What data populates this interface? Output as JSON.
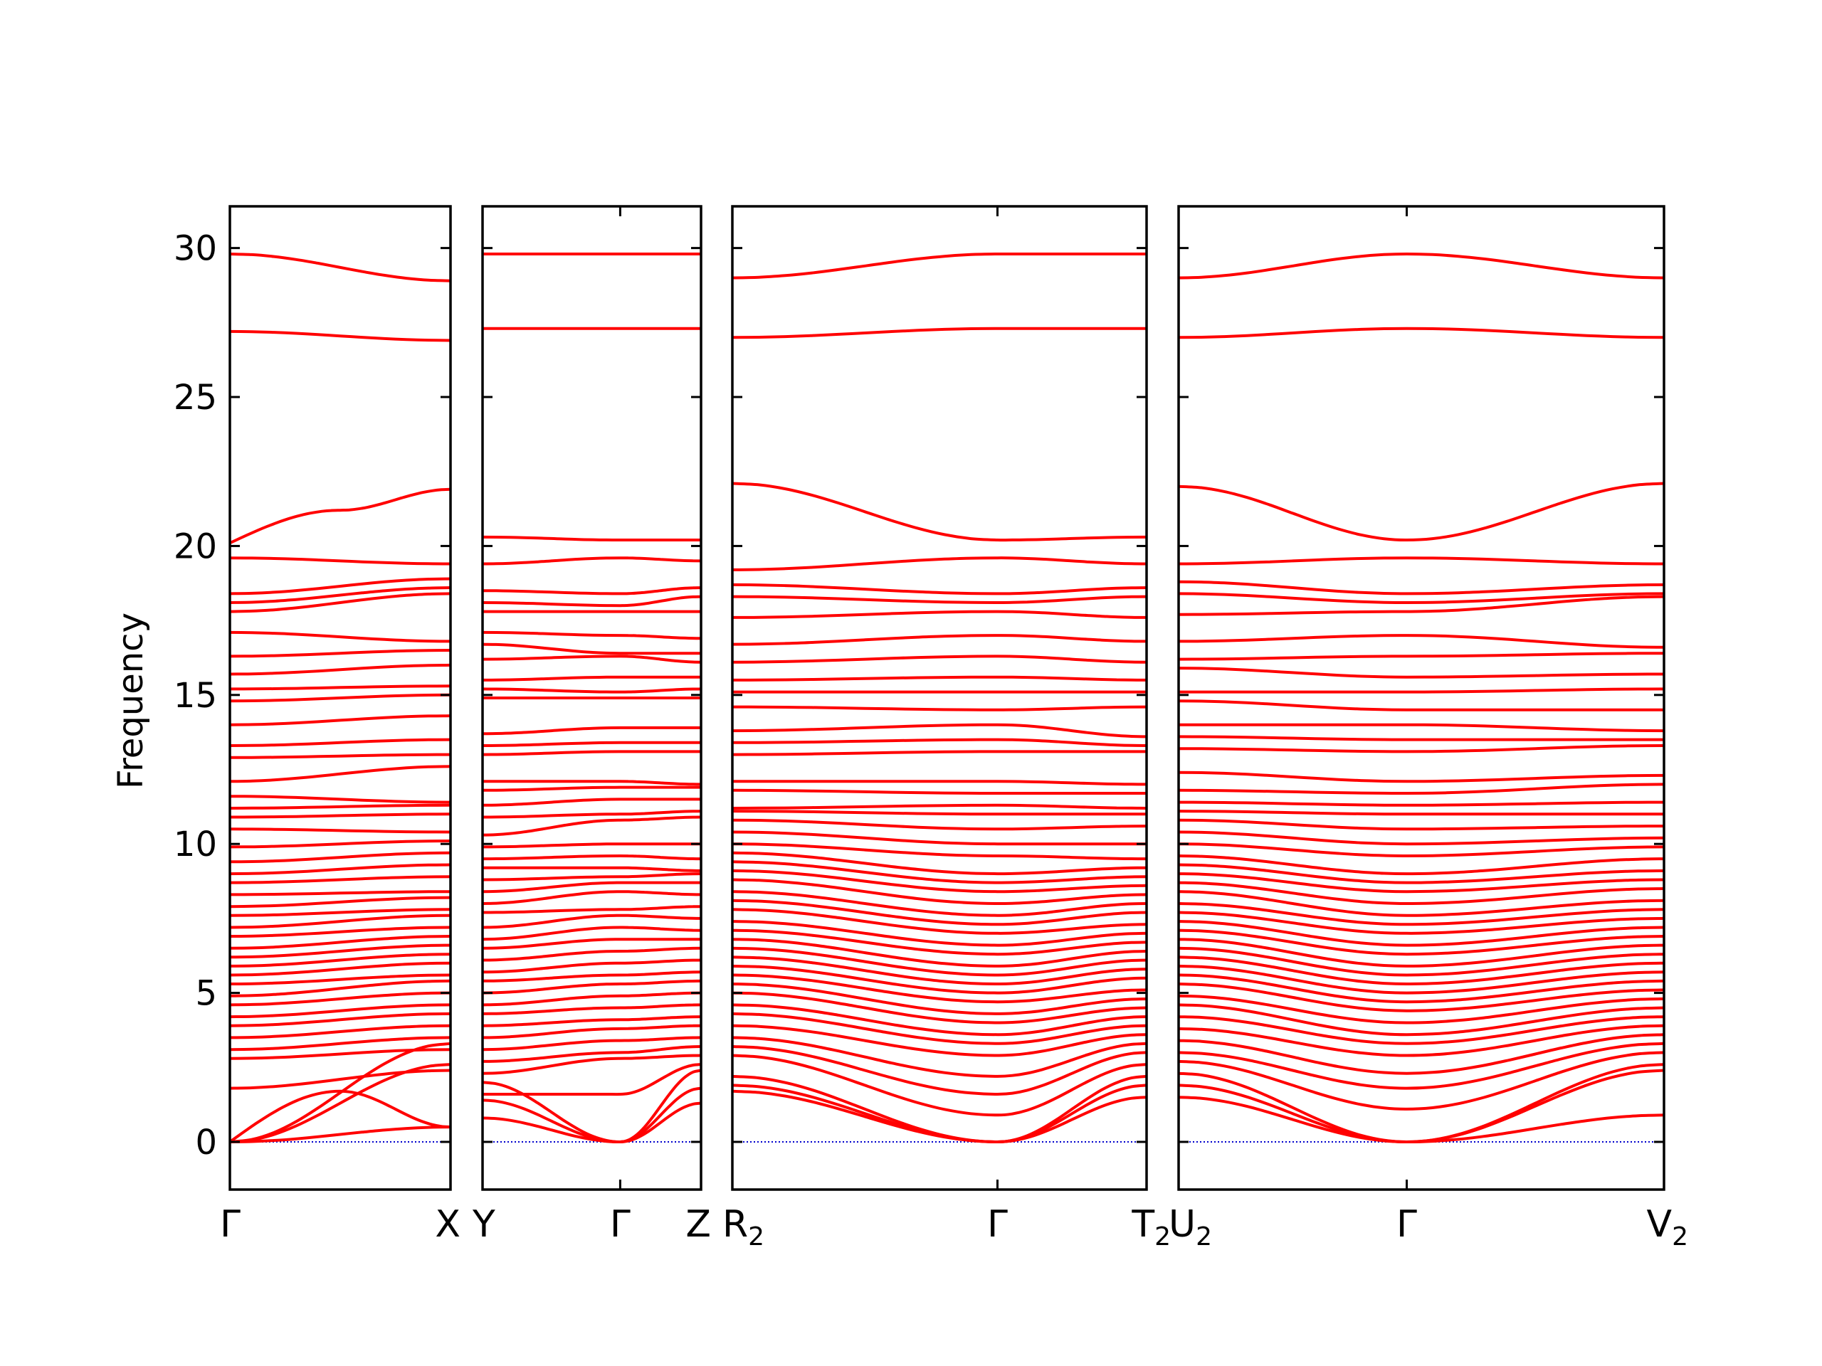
{
  "colors": {
    "band": "#ff0000",
    "zero_line": "#0000cc",
    "axes": "#000000",
    "background": "#ffffff"
  },
  "chart_data": {
    "type": "line",
    "title": "",
    "ylabel": "Frequency",
    "ylim": [
      -1.6,
      31.4
    ],
    "yticks": [
      0,
      5,
      10,
      15,
      20,
      25,
      30
    ],
    "grid": false,
    "legend": "none",
    "zero_line": {
      "y": 0,
      "style": "dotted"
    },
    "panels": [
      {
        "path": "Γ–X",
        "ticks": [
          {
            "label": "Γ",
            "sub": "",
            "pos": 0
          },
          {
            "label": "X",
            "sub": "",
            "pos": 1
          }
        ],
        "bands": [
          [
            0,
            0.5
          ],
          [
            0,
            2.6
          ],
          [
            0,
            3.3
          ],
          [
            1.8,
            2.4
          ],
          [
            2.8,
            3.1
          ],
          [
            3.1,
            3.5
          ],
          [
            3.5,
            3.9
          ],
          [
            3.9,
            4.3
          ],
          [
            4.2,
            4.6
          ],
          [
            4.6,
            5.0
          ],
          [
            4.9,
            5.4
          ],
          [
            5.3,
            5.6
          ],
          [
            5.6,
            6.0
          ],
          [
            5.9,
            6.3
          ],
          [
            6.2,
            6.6
          ],
          [
            6.5,
            6.9
          ],
          [
            6.9,
            7.2
          ],
          [
            7.2,
            7.6
          ],
          [
            7.6,
            7.8
          ],
          [
            7.9,
            8.2
          ],
          [
            8.3,
            8.4
          ],
          [
            8.7,
            8.9
          ],
          [
            9.0,
            9.3
          ],
          [
            9.4,
            9.7
          ],
          [
            9.9,
            10.1
          ],
          [
            10.5,
            10.4
          ],
          [
            10.9,
            11.0
          ],
          [
            11.2,
            11.3
          ],
          [
            11.6,
            11.4
          ],
          [
            12.1,
            12.6
          ],
          [
            12.9,
            13.0
          ],
          [
            13.3,
            13.5
          ],
          [
            14.0,
            14.3
          ],
          [
            14.8,
            15.0
          ],
          [
            15.2,
            15.3
          ],
          [
            15.7,
            16.0
          ],
          [
            16.3,
            16.5
          ],
          [
            17.1,
            16.8
          ],
          [
            17.8,
            18.4
          ],
          [
            18.1,
            18.6
          ],
          [
            18.4,
            18.9
          ],
          [
            19.6,
            19.4
          ],
          [
            29.8,
            28.9
          ],
          [
            27.2,
            26.9
          ]
        ],
        "curved_bands": [
          {
            "start": 0,
            "mid": 1.7,
            "end": 0.5
          },
          {
            "start": 20.1,
            "mid": 21.2,
            "end": 21.9
          }
        ]
      },
      {
        "path": "Y–Γ–Z",
        "ticks": [
          {
            "label": "Y",
            "sub": "",
            "pos": 0
          },
          {
            "label": "Γ",
            "sub": "",
            "pos": 0.63
          },
          {
            "label": "Z",
            "sub": "",
            "pos": 1
          }
        ],
        "gamma_pos": 0.63,
        "bands": [
          [
            0.8,
            0,
            1.3
          ],
          [
            1.4,
            0,
            1.8
          ],
          [
            2.0,
            0,
            2.4
          ],
          [
            1.6,
            1.6,
            2.6
          ],
          [
            2.3,
            2.8,
            2.9
          ],
          [
            2.7,
            3.0,
            3.2
          ],
          [
            3.1,
            3.4,
            3.5
          ],
          [
            3.5,
            3.8,
            3.9
          ],
          [
            3.9,
            4.1,
            4.2
          ],
          [
            4.3,
            4.5,
            4.6
          ],
          [
            4.6,
            4.9,
            5.0
          ],
          [
            5.0,
            5.3,
            5.4
          ],
          [
            5.4,
            5.6,
            5.7
          ],
          [
            5.7,
            6.0,
            6.1
          ],
          [
            6.1,
            6.4,
            6.5
          ],
          [
            6.5,
            6.8,
            6.8
          ],
          [
            6.8,
            7.2,
            7.1
          ],
          [
            7.2,
            7.6,
            7.5
          ],
          [
            7.7,
            7.8,
            7.9
          ],
          [
            8.0,
            8.4,
            8.3
          ],
          [
            8.4,
            8.7,
            8.7
          ],
          [
            8.8,
            8.9,
            9.0
          ],
          [
            9.2,
            9.2,
            9.1
          ],
          [
            9.5,
            9.6,
            9.5
          ],
          [
            9.9,
            10.0,
            10.0
          ],
          [
            10.3,
            10.8,
            10.9
          ],
          [
            10.9,
            11.0,
            11.1
          ],
          [
            11.3,
            11.5,
            11.5
          ],
          [
            11.8,
            11.9,
            11.9
          ],
          [
            12.1,
            12.1,
            12.0
          ],
          [
            13.0,
            13.1,
            13.1
          ],
          [
            13.3,
            13.4,
            13.4
          ],
          [
            13.7,
            13.9,
            13.9
          ],
          [
            14.9,
            14.9,
            14.9
          ],
          [
            15.2,
            15.1,
            15.2
          ],
          [
            15.5,
            15.6,
            15.6
          ],
          [
            16.2,
            16.3,
            16.1
          ],
          [
            16.7,
            16.4,
            16.4
          ],
          [
            17.1,
            17.0,
            16.9
          ],
          [
            17.8,
            17.8,
            17.8
          ],
          [
            18.1,
            18.0,
            18.3
          ],
          [
            18.5,
            18.4,
            18.6
          ],
          [
            19.4,
            19.6,
            19.5
          ],
          [
            20.3,
            20.2,
            20.2
          ],
          [
            27.3,
            27.3,
            27.3
          ],
          [
            29.8,
            29.8,
            29.8
          ]
        ]
      },
      {
        "path": "R2–Γ–T2",
        "ticks": [
          {
            "label": "R",
            "sub": "2",
            "pos": 0
          },
          {
            "label": "Γ",
            "sub": "",
            "pos": 0.64
          },
          {
            "label": "T",
            "sub": "2",
            "pos": 1
          }
        ],
        "gamma_pos": 0.64,
        "bands": [
          [
            1.7,
            0,
            1.5
          ],
          [
            1.9,
            0,
            1.9
          ],
          [
            2.2,
            0,
            2.2
          ],
          [
            2.9,
            0.9,
            2.6
          ],
          [
            3.2,
            1.6,
            3.0
          ],
          [
            3.5,
            2.2,
            3.3
          ],
          [
            3.9,
            2.9,
            3.6
          ],
          [
            4.3,
            3.3,
            3.9
          ],
          [
            4.6,
            3.6,
            4.2
          ],
          [
            5.0,
            4.0,
            4.5
          ],
          [
            5.3,
            4.3,
            4.8
          ],
          [
            5.6,
            4.7,
            5.1
          ],
          [
            5.9,
            5.0,
            5.5
          ],
          [
            6.2,
            5.3,
            5.8
          ],
          [
            6.5,
            5.6,
            6.1
          ],
          [
            6.8,
            5.9,
            6.4
          ],
          [
            7.1,
            6.3,
            6.7
          ],
          [
            7.4,
            6.6,
            7.0
          ],
          [
            7.8,
            7.0,
            7.3
          ],
          [
            8.1,
            7.3,
            7.7
          ],
          [
            8.4,
            7.6,
            8.0
          ],
          [
            8.8,
            8.0,
            8.3
          ],
          [
            9.1,
            8.4,
            8.6
          ],
          [
            9.4,
            8.7,
            8.9
          ],
          [
            9.7,
            9.0,
            9.2
          ],
          [
            10.0,
            9.6,
            9.5
          ],
          [
            10.4,
            10.0,
            10.0
          ],
          [
            10.8,
            10.5,
            10.6
          ],
          [
            11.1,
            11.0,
            11.0
          ],
          [
            11.2,
            11.3,
            11.2
          ],
          [
            11.8,
            11.7,
            11.7
          ],
          [
            12.1,
            12.1,
            12.0
          ],
          [
            13.0,
            13.1,
            13.1
          ],
          [
            13.4,
            13.5,
            13.3
          ],
          [
            13.8,
            14.0,
            13.6
          ],
          [
            14.6,
            14.5,
            14.6
          ],
          [
            15.1,
            15.1,
            15.1
          ],
          [
            15.5,
            15.6,
            15.5
          ],
          [
            16.1,
            16.3,
            16.1
          ],
          [
            16.7,
            17.0,
            16.8
          ],
          [
            17.6,
            17.8,
            17.6
          ],
          [
            18.3,
            18.1,
            18.3
          ],
          [
            18.7,
            18.4,
            18.6
          ],
          [
            19.2,
            19.6,
            19.4
          ],
          [
            22.1,
            20.2,
            20.3
          ],
          [
            27.0,
            27.3,
            27.3
          ],
          [
            29.0,
            29.8,
            29.8
          ]
        ]
      },
      {
        "path": "U2–Γ–V2",
        "ticks": [
          {
            "label": "U",
            "sub": "2",
            "pos": 0
          },
          {
            "label": "Γ",
            "sub": "",
            "pos": 0.47
          },
          {
            "label": "V",
            "sub": "2",
            "pos": 1
          }
        ],
        "gamma_pos": 0.47,
        "bands": [
          [
            1.5,
            0,
            0.9
          ],
          [
            1.9,
            0,
            2.4
          ],
          [
            2.3,
            0,
            2.6
          ],
          [
            2.7,
            1.1,
            3.0
          ],
          [
            3.0,
            1.8,
            3.3
          ],
          [
            3.4,
            2.3,
            3.6
          ],
          [
            3.8,
            2.9,
            3.9
          ],
          [
            4.2,
            3.3,
            4.2
          ],
          [
            4.6,
            3.6,
            4.5
          ],
          [
            4.9,
            4.0,
            4.8
          ],
          [
            5.3,
            4.4,
            5.1
          ],
          [
            5.6,
            4.7,
            5.4
          ],
          [
            5.9,
            5.0,
            5.7
          ],
          [
            6.2,
            5.3,
            6.0
          ],
          [
            6.5,
            5.6,
            6.3
          ],
          [
            6.8,
            5.9,
            6.6
          ],
          [
            7.1,
            6.3,
            6.9
          ],
          [
            7.4,
            6.6,
            7.2
          ],
          [
            7.7,
            7.0,
            7.5
          ],
          [
            8.0,
            7.3,
            7.8
          ],
          [
            8.4,
            7.6,
            8.1
          ],
          [
            8.7,
            8.0,
            8.5
          ],
          [
            9.0,
            8.4,
            8.8
          ],
          [
            9.3,
            8.7,
            9.1
          ],
          [
            9.6,
            9.0,
            9.5
          ],
          [
            10.0,
            9.6,
            9.9
          ],
          [
            10.4,
            10.0,
            10.2
          ],
          [
            10.8,
            10.5,
            10.6
          ],
          [
            11.1,
            11.0,
            11.0
          ],
          [
            11.4,
            11.3,
            11.4
          ],
          [
            11.8,
            11.7,
            12.0
          ],
          [
            12.4,
            12.1,
            12.3
          ],
          [
            13.2,
            13.1,
            13.3
          ],
          [
            13.6,
            13.5,
            13.5
          ],
          [
            14.0,
            14.0,
            13.8
          ],
          [
            14.8,
            14.5,
            14.5
          ],
          [
            15.1,
            15.1,
            15.2
          ],
          [
            15.9,
            15.6,
            15.7
          ],
          [
            16.2,
            16.3,
            16.4
          ],
          [
            16.8,
            17.0,
            16.6
          ],
          [
            17.7,
            17.8,
            18.3
          ],
          [
            18.4,
            18.1,
            18.4
          ],
          [
            18.8,
            18.4,
            18.7
          ],
          [
            19.4,
            19.6,
            19.4
          ],
          [
            22.0,
            20.2,
            22.1
          ],
          [
            27.0,
            27.3,
            27.0
          ],
          [
            29.0,
            29.8,
            29.0
          ]
        ]
      }
    ]
  }
}
